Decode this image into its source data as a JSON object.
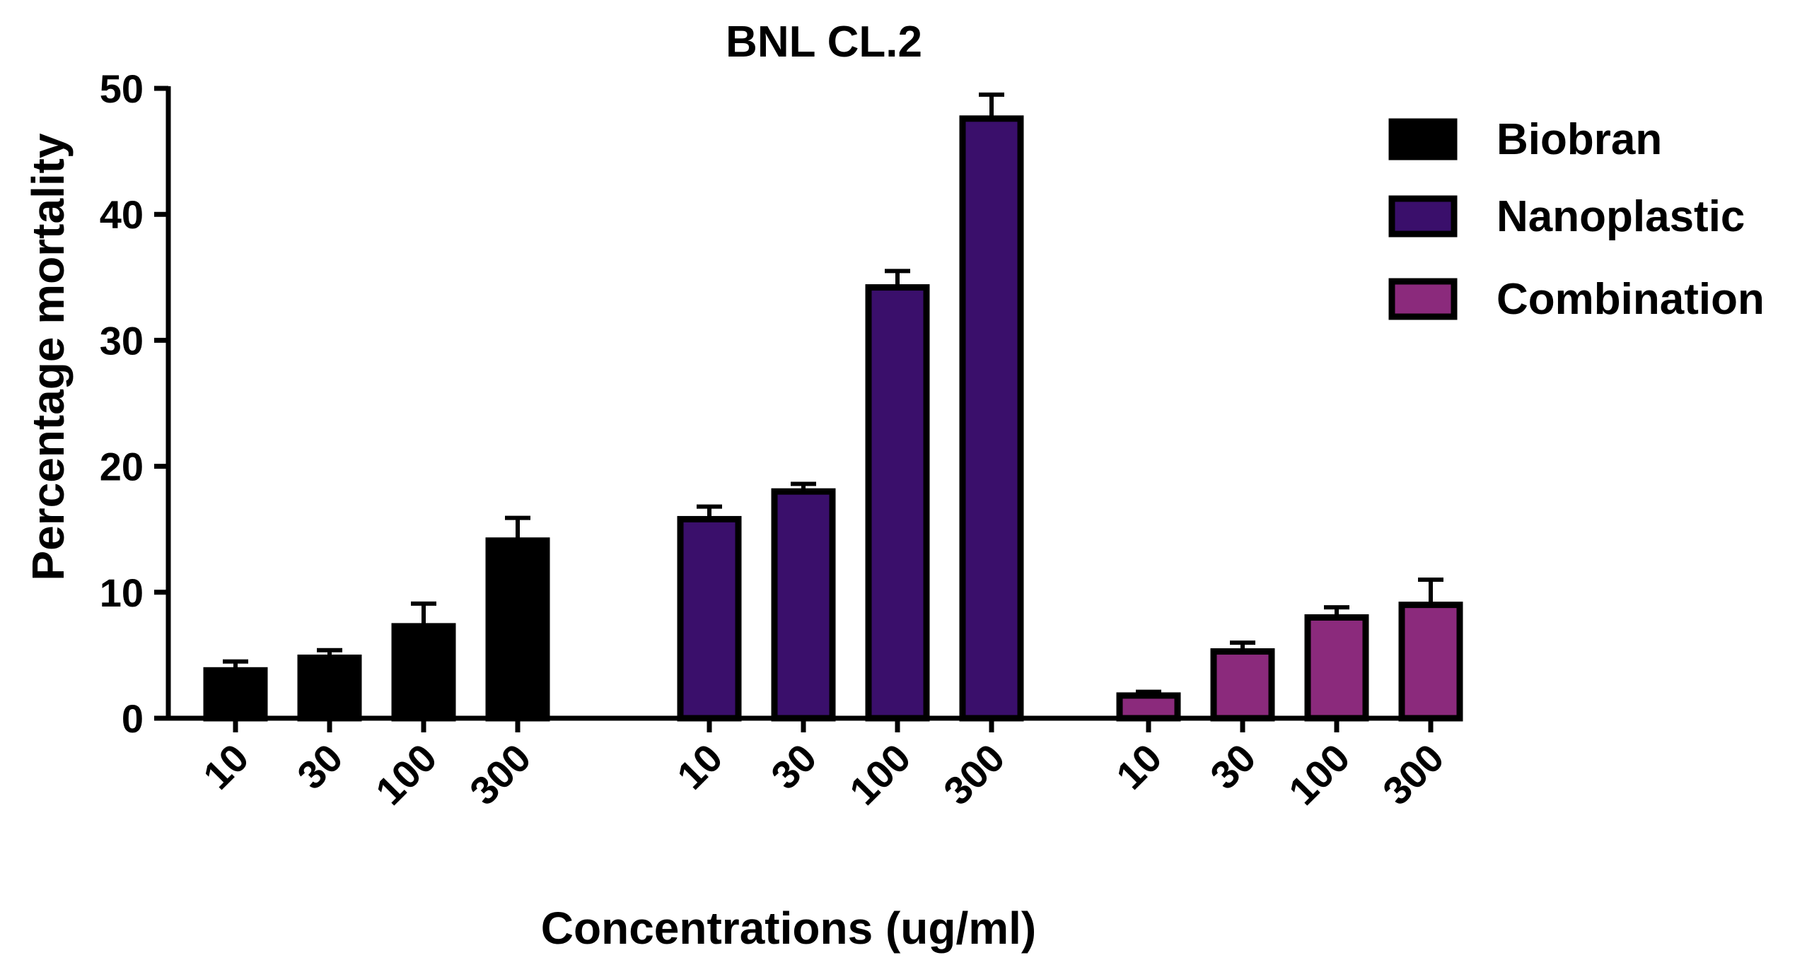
{
  "chart_data": {
    "type": "bar",
    "title": "BNL CL.2",
    "xlabel": "Concentrations (ug/ml)",
    "ylabel": "Percentage mortality",
    "ylim": [
      0,
      50
    ],
    "yticks": [
      "0",
      "10",
      "20",
      "30",
      "40",
      "50"
    ],
    "categories": [
      "10",
      "30",
      "100",
      "300"
    ],
    "legend_position": "top-right",
    "series": [
      {
        "name": "Biobran",
        "color": "#000000",
        "values": [
          3.8,
          4.8,
          7.3,
          14.1
        ],
        "errors": [
          0.7,
          0.6,
          1.8,
          1.8
        ]
      },
      {
        "name": "Nanoplastic",
        "color": "#3a0f6b",
        "values": [
          15.8,
          18.0,
          34.2,
          47.6
        ],
        "errors": [
          1.0,
          0.6,
          1.3,
          1.9
        ]
      },
      {
        "name": "Combination",
        "color": "#8b2a7c",
        "values": [
          1.8,
          5.3,
          8.0,
          9.0
        ],
        "errors": [
          0.3,
          0.7,
          0.8,
          2.0
        ]
      }
    ]
  }
}
